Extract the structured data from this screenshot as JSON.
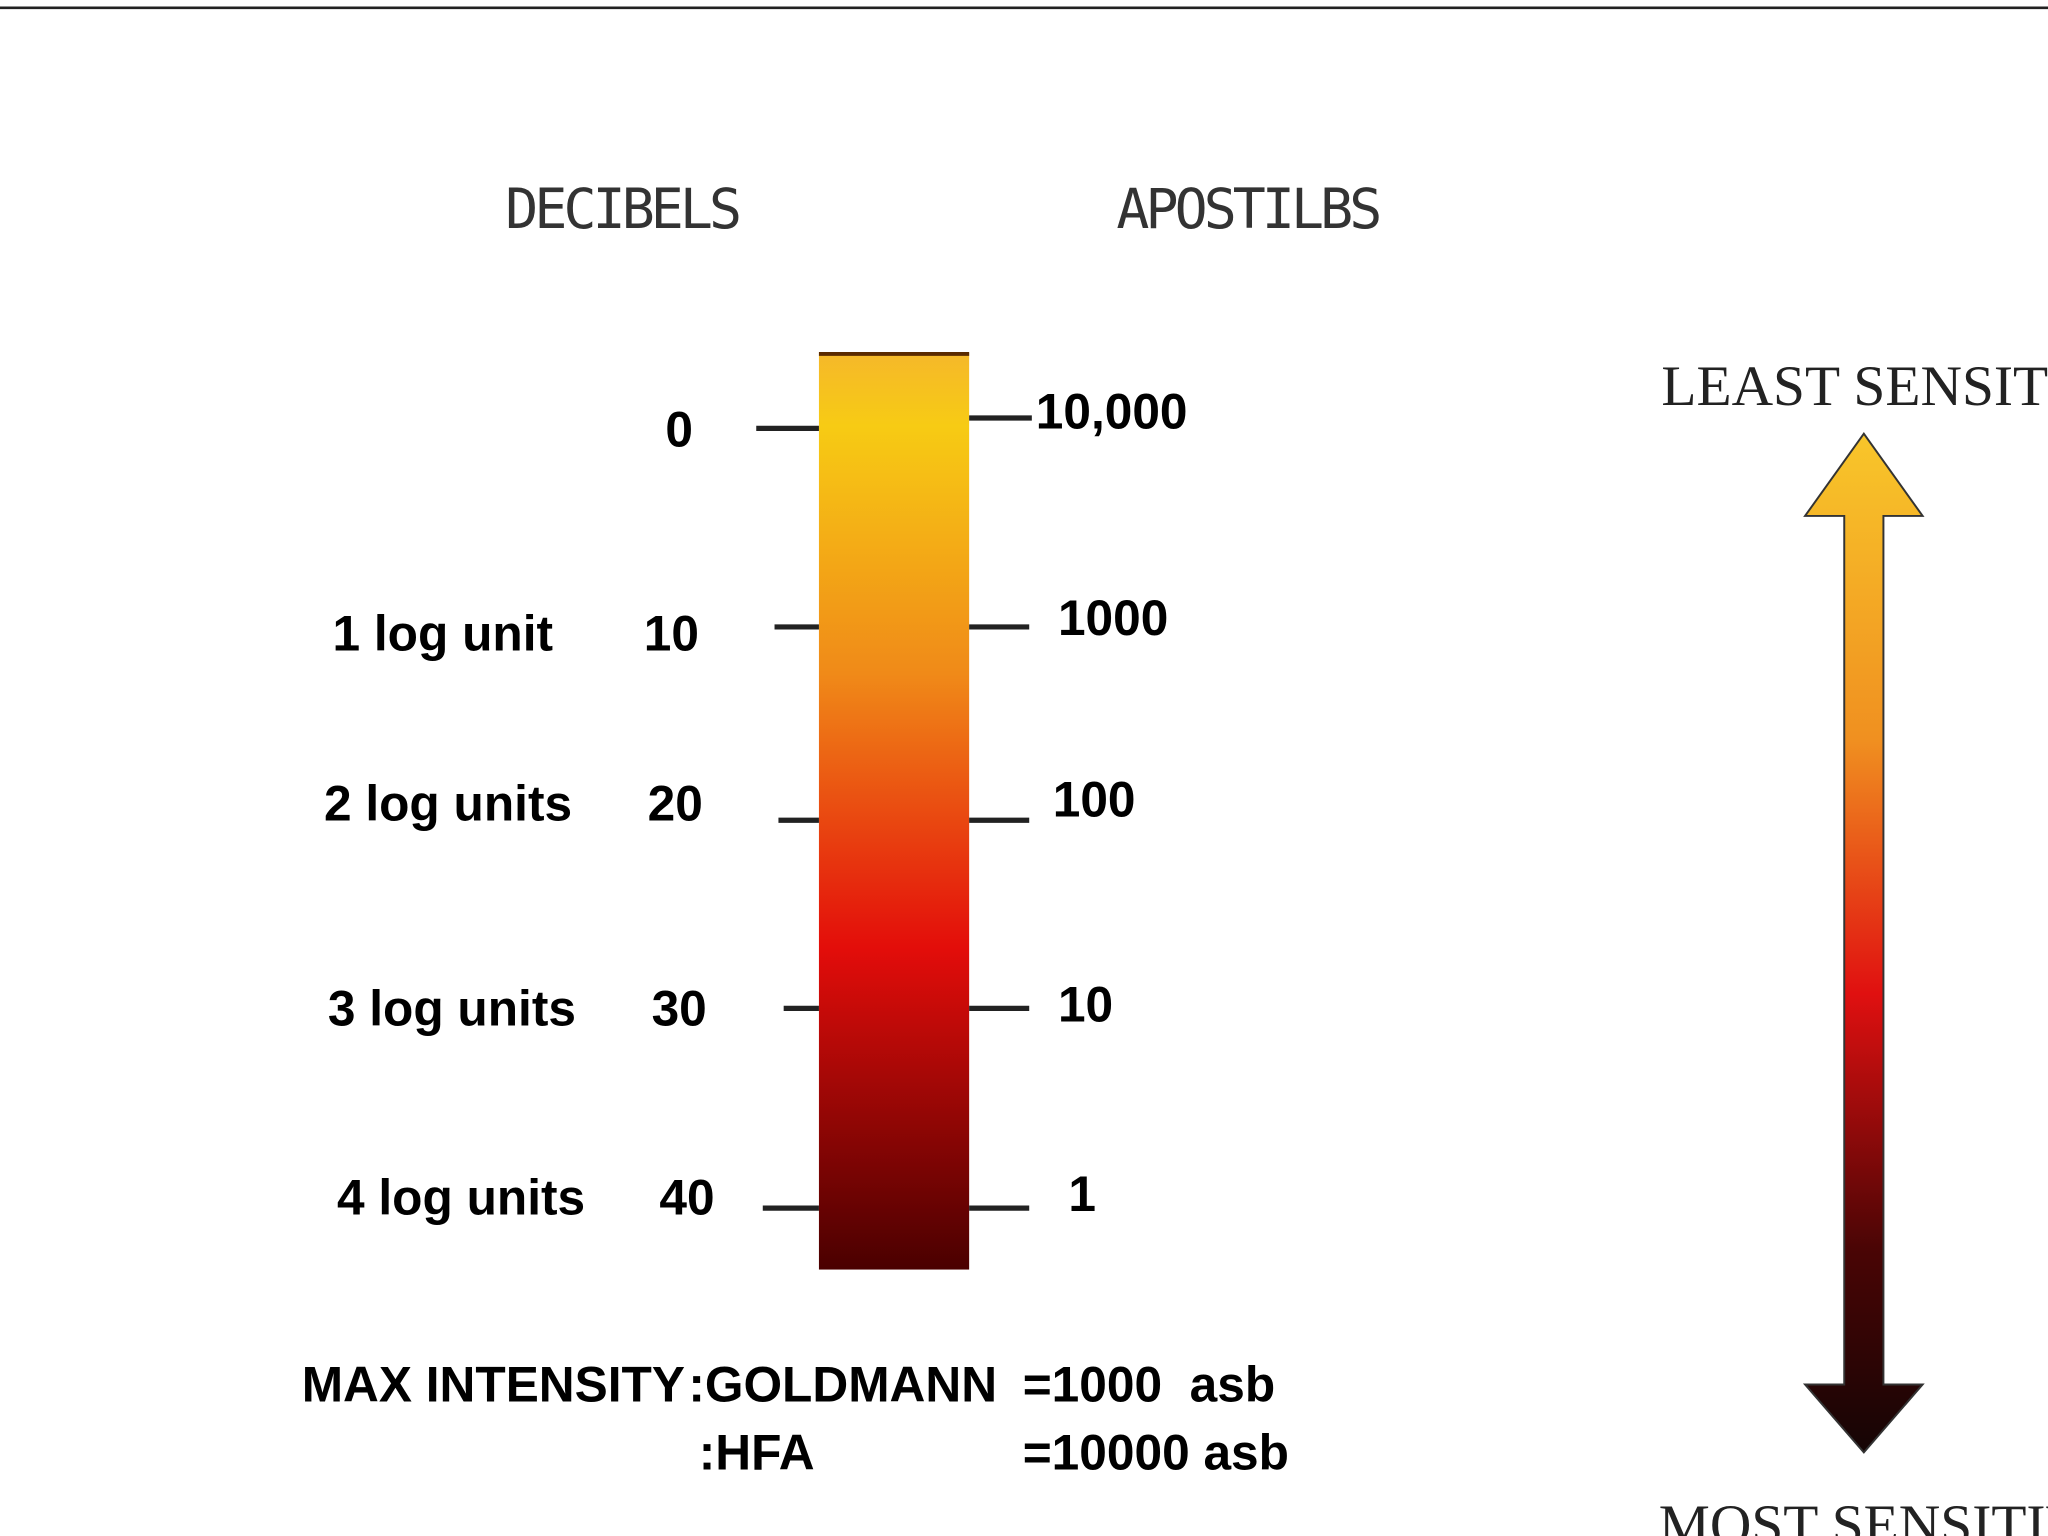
{
  "headers": {
    "left": "DECIBELS",
    "right": "APOSTILBS"
  },
  "rows": [
    {
      "decibels": "0",
      "apostilbs": "10,000"
    },
    {
      "log_label": "1 log unit",
      "decibels": "10",
      "apostilbs": "1000"
    },
    {
      "log_label": "2 log units",
      "decibels": "20",
      "apostilbs": "100"
    },
    {
      "log_label": "3 log units",
      "decibels": "30",
      "apostilbs": "10"
    },
    {
      "log_label": "4 log units",
      "decibels": "40",
      "apostilbs": "1"
    }
  ],
  "arrow": {
    "top": "LEAST SENSITIVE",
    "bottom": "MOST SENSITIVE"
  },
  "footer": {
    "label": "MAX INTENSITY",
    "goldmann": ":GOLDMANN",
    "goldmann_value": "=1000  asb",
    "hfa": ":HFA",
    "hfa_value": "=10000 asb"
  }
}
